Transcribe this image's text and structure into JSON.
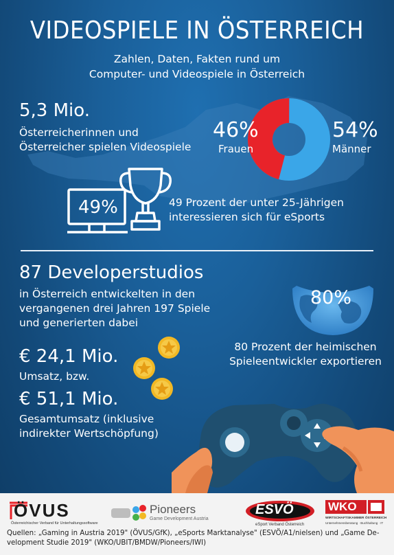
{
  "header": {
    "title": "VIDEOSPIELE IN ÖSTERREICH",
    "subtitle_line1": "Zahlen, Daten, Fakten rund um",
    "subtitle_line2": "Computer- und Videospiele in Österreich"
  },
  "players": {
    "count": "5,3 Mio.",
    "line1": "Österreicherinnen und",
    "line2": "Österreicher spielen Videospiele"
  },
  "gender": {
    "female_pct_value": 46,
    "female_pct": "46%",
    "female_label": "Frauen",
    "male_pct": "54%",
    "male_label": "Männer",
    "female_color": "#e8232a",
    "male_color": "#3aa6e8"
  },
  "esports": {
    "pct": "49%",
    "line1": "49 Prozent der unter 25-Jährigen",
    "line2": "interessieren sich für eSports"
  },
  "developers": {
    "headline": "87 Developerstudios",
    "line1": "in Österreich entwickelten in den",
    "line2": "vergangenen drei Jahren 197 Spiele",
    "line3": "und generierten dabei"
  },
  "export": {
    "pct": "80%",
    "line1": "80 Prozent der heimischen",
    "line2": "Spieleentwickler exportieren"
  },
  "revenue": {
    "value": "€ 24,1 Mio.",
    "label": "Umsatz, bzw."
  },
  "total_revenue": {
    "value": "€ 51,1 Mio.",
    "line1": "Gesamtumsatz (inklusive",
    "line2": "indirekter Wertschöpfung)"
  },
  "logos": {
    "ovus": "ÖVUS",
    "ovus_sub": "Österreichischer Verband für Unterhaltungssoftware",
    "pioneers": "Pioneers",
    "pioneers_sub": "Game Development Austria",
    "esvo": "ESVÖ",
    "esvo_sub": "eSport Verband Österreich",
    "wko": "WKO",
    "wko_sub1": "WIRTSCHAFTSKAMMER ÖSTERREICH",
    "wko_sub2": "Unternehmensberatung · Buchhaltung · IT"
  },
  "sources": {
    "line1": "Quellen: „Gaming in Austria 2019\" (ÖVUS/GfK), „eSports Marktanalyse\" (ESVÖ/A1/nielsen) und „Game De-",
    "line2": "velopment Studie 2019\" (WKO/UBIT/BMDW/Pioneers/IWI)"
  },
  "colors": {
    "background": "#1a5f99",
    "coin": "#f2b824",
    "controller": "#1f4f6f",
    "hand": "#f0935a"
  }
}
